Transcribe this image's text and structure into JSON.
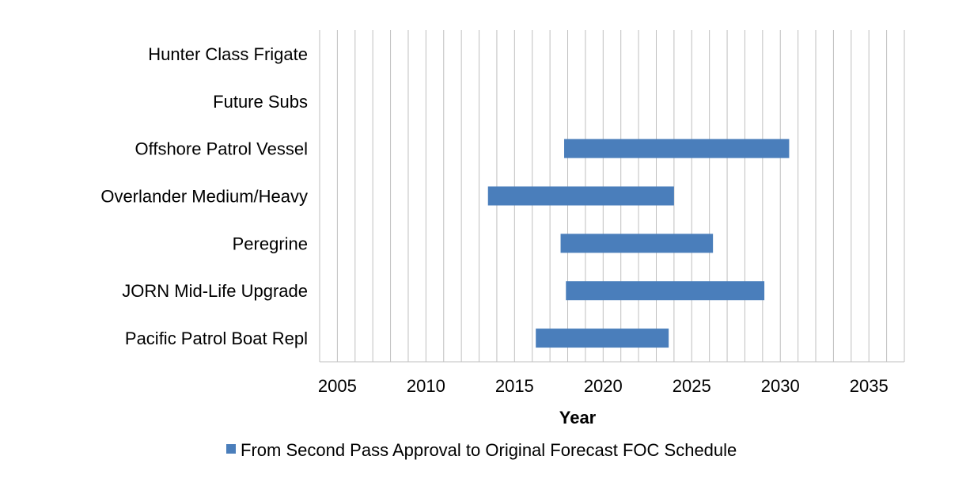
{
  "chart_data": {
    "type": "bar",
    "orientation": "horizontal-range",
    "categories": [
      "Hunter Class Frigate",
      "Future Subs",
      "Offshore Patrol Vessel",
      "Overlander Medium/Heavy",
      "Peregrine",
      "JORN Mid-Life Upgrade",
      "Pacific Patrol Boat Repl"
    ],
    "series": [
      {
        "name": "From Second Pass Approval to Original Forecast FOC Schedule",
        "color": "#4a7ebb",
        "ranges": [
          null,
          null,
          [
            2017.8,
            2030.5
          ],
          [
            2013.5,
            2024.0
          ],
          [
            2017.6,
            2026.2
          ],
          [
            2017.9,
            2029.1
          ],
          [
            2016.2,
            2023.7
          ]
        ]
      }
    ],
    "xlabel": "Year",
    "ylabel": "",
    "xlim": [
      2004,
      2037
    ],
    "xticks": [
      2005,
      2010,
      2015,
      2020,
      2025,
      2030,
      2035
    ],
    "xtick_labels": [
      "2005",
      "2010",
      "2015",
      "2020",
      "2025",
      "2030",
      "2035"
    ],
    "grid": "vertical, every year",
    "legend_position": "bottom"
  }
}
